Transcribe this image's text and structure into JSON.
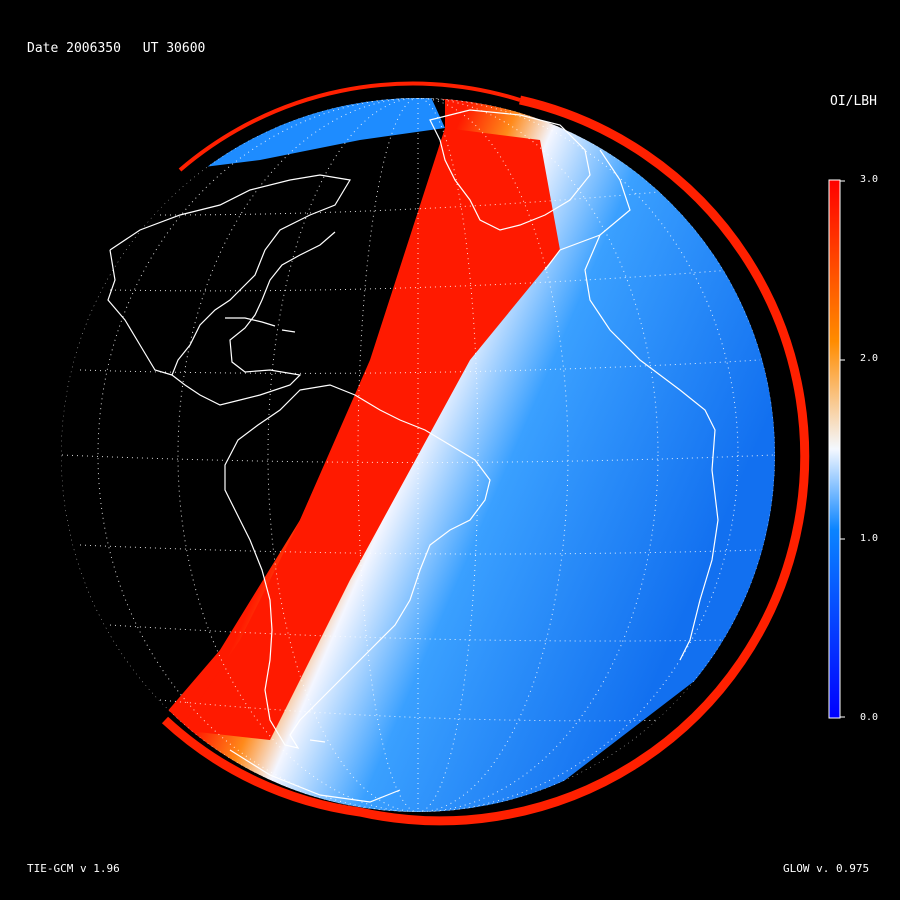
{
  "header": {
    "date": "Date 2006350",
    "ut": "UT 30600"
  },
  "colorbar": {
    "title": "OI/LBH",
    "ticks": [
      "3.0",
      "2.0",
      "1.0",
      "0.0"
    ],
    "stops": [
      "#0000ff",
      "#0a84ff",
      "#f4f8ff",
      "#ff8c00",
      "#ff0000"
    ]
  },
  "footer": {
    "left": "TIE-GCM v 1.96",
    "right": "GLOW v. 0.975"
  }
}
